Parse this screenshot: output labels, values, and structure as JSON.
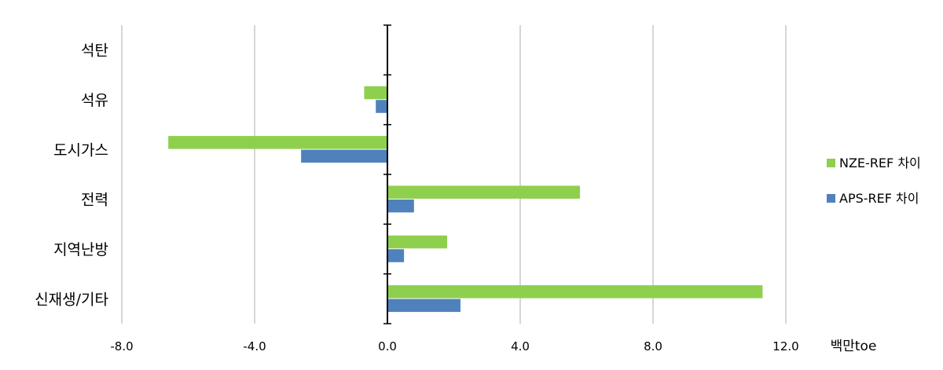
{
  "chart_data": {
    "type": "bar",
    "orientation": "horizontal",
    "categories": [
      "석탄",
      "석유",
      "도시가스",
      "전력",
      "지역난방",
      "신재생/기타"
    ],
    "series": [
      {
        "name": "NZE-REF 차이",
        "color": "#8ed04e",
        "values": [
          0.0,
          -0.7,
          -6.6,
          5.8,
          1.8,
          11.3
        ]
      },
      {
        "name": "APS-REF 차이",
        "color": "#4f81bd",
        "values": [
          0.0,
          -0.35,
          -2.6,
          0.8,
          0.5,
          2.2
        ]
      }
    ],
    "xlim": [
      -8.0,
      12.0
    ],
    "xticks": [
      -8.0,
      -4.0,
      0.0,
      4.0,
      8.0,
      12.0
    ],
    "xtick_labels": [
      "-8.0",
      "-4.0",
      "0.0",
      "4.0",
      "8.0",
      "12.0"
    ],
    "unit_label": "백만toe",
    "grid": "vertical",
    "legend": "right"
  }
}
